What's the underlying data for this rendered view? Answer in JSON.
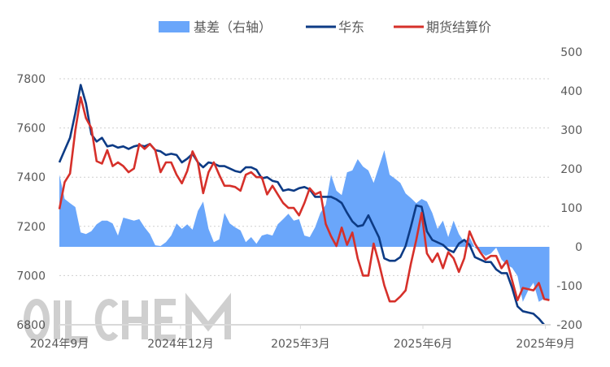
{
  "chart_data": {
    "type": "line",
    "title": "",
    "legend": {
      "placement": "top",
      "items": [
        {
          "label": "基差（右轴）",
          "type": "area",
          "color": "#6aa6fa"
        },
        {
          "label": "华东",
          "type": "line",
          "color": "#0d3b85"
        },
        {
          "label": "期货结算价",
          "type": "line",
          "color": "#d6302a"
        }
      ]
    },
    "grid": true,
    "watermark": "OILCHEM",
    "x_tick_labels": [
      "2024年9月",
      "2024年12月",
      "2025年3月",
      "2025年6月",
      "2025年9月"
    ],
    "x_tick_dates": [
      "2024-09-01",
      "2024-12-01",
      "2025-03-01",
      "2025-06-01",
      "2025-09-01"
    ],
    "y_left": {
      "range": [
        6800,
        7800
      ],
      "ticks": [
        "6800",
        "7000",
        "7200",
        "7400",
        "7600",
        "7800"
      ]
    },
    "y_right": {
      "range": [
        -200,
        500
      ],
      "ticks": [
        "-200",
        "-100",
        "0",
        "100",
        "200",
        "300",
        "400",
        "500"
      ]
    },
    "x": [
      "2024-09-01",
      "2024-09-05",
      "2024-09-09",
      "2024-09-13",
      "2024-09-17",
      "2024-09-21",
      "2024-09-25",
      "2024-09-29",
      "2024-10-03",
      "2024-10-07",
      "2024-10-11",
      "2024-10-15",
      "2024-10-19",
      "2024-10-23",
      "2024-10-27",
      "2024-10-31",
      "2024-11-04",
      "2024-11-08",
      "2024-11-12",
      "2024-11-16",
      "2024-11-20",
      "2024-11-24",
      "2024-11-28",
      "2024-12-02",
      "2024-12-06",
      "2024-12-10",
      "2024-12-14",
      "2024-12-18",
      "2024-12-22",
      "2024-12-26",
      "2024-12-30",
      "2025-01-03",
      "2025-01-07",
      "2025-01-11",
      "2025-01-15",
      "2025-01-19",
      "2025-01-23",
      "2025-01-27",
      "2025-01-31",
      "2025-02-04",
      "2025-02-08",
      "2025-02-12",
      "2025-02-16",
      "2025-02-20",
      "2025-02-24",
      "2025-02-28",
      "2025-03-04",
      "2025-03-08",
      "2025-03-12",
      "2025-03-16",
      "2025-03-20",
      "2025-03-24",
      "2025-03-28",
      "2025-04-01",
      "2025-04-05",
      "2025-04-09",
      "2025-04-13",
      "2025-04-17",
      "2025-04-21",
      "2025-04-25",
      "2025-04-29",
      "2025-05-03",
      "2025-05-07",
      "2025-05-11",
      "2025-05-15",
      "2025-05-19",
      "2025-05-23",
      "2025-05-27",
      "2025-05-31",
      "2025-06-04",
      "2025-06-08",
      "2025-06-12",
      "2025-06-16",
      "2025-06-20",
      "2025-06-24",
      "2025-06-28",
      "2025-07-02",
      "2025-07-06",
      "2025-07-10",
      "2025-07-14",
      "2025-07-18",
      "2025-07-22",
      "2025-07-26",
      "2025-07-30",
      "2025-08-03",
      "2025-08-07",
      "2025-08-11",
      "2025-08-15",
      "2025-08-19",
      "2025-08-23",
      "2025-08-27",
      "2025-08-31",
      "2025-09-04"
    ],
    "series": [
      {
        "name": "基差（右轴）",
        "axis": "right",
        "type": "area",
        "values": [
          185,
          123,
          112,
          102,
          37,
          33,
          40,
          58,
          67,
          67,
          60,
          29,
          75,
          71,
          67,
          71,
          50,
          33,
          4,
          2,
          12,
          29,
          60,
          46,
          58,
          44,
          92,
          116,
          46,
          12,
          19,
          87,
          60,
          50,
          42,
          12,
          25,
          8,
          29,
          33,
          29,
          58,
          71,
          85,
          67,
          71,
          29,
          25,
          50,
          87,
          108,
          185,
          144,
          133,
          191,
          196,
          225,
          206,
          196,
          164,
          206,
          248,
          185,
          175,
          164,
          137,
          125,
          112,
          123,
          116,
          87,
          46,
          67,
          25,
          67,
          33,
          12,
          25,
          -2,
          -12,
          -23,
          -17,
          -2,
          -33,
          -46,
          -54,
          -75,
          -141,
          -112,
          -92,
          -141,
          -133,
          -137
        ]
      },
      {
        "name": "华东",
        "axis": "left",
        "type": "line",
        "values": [
          7460,
          7510,
          7560,
          7660,
          7775,
          7700,
          7575,
          7545,
          7560,
          7525,
          7530,
          7520,
          7525,
          7515,
          7525,
          7530,
          7525,
          7535,
          7510,
          7505,
          7490,
          7495,
          7490,
          7460,
          7475,
          7495,
          7460,
          7440,
          7460,
          7455,
          7445,
          7445,
          7435,
          7425,
          7420,
          7440,
          7440,
          7430,
          7395,
          7400,
          7385,
          7380,
          7345,
          7350,
          7345,
          7355,
          7360,
          7350,
          7320,
          7320,
          7320,
          7320,
          7310,
          7295,
          7255,
          7220,
          7200,
          7205,
          7245,
          7200,
          7155,
          7070,
          7060,
          7060,
          7075,
          7120,
          7200,
          7285,
          7280,
          7180,
          7145,
          7135,
          7125,
          7105,
          7095,
          7130,
          7145,
          7125,
          7075,
          7065,
          7055,
          7055,
          7025,
          7010,
          7010,
          6950,
          6875,
          6855,
          6850,
          6845,
          6825,
          6800,
          null
        ]
      },
      {
        "name": "期货结算价",
        "axis": "left",
        "type": "line",
        "values": [
          7270,
          7380,
          7415,
          7590,
          7725,
          7640,
          7600,
          7465,
          7455,
          7510,
          7445,
          7460,
          7445,
          7420,
          7435,
          7535,
          7515,
          7535,
          7510,
          7420,
          7460,
          7460,
          7410,
          7375,
          7425,
          7505,
          7460,
          7335,
          7420,
          7460,
          7410,
          7365,
          7365,
          7360,
          7345,
          7410,
          7420,
          7400,
          7400,
          7330,
          7365,
          7330,
          7295,
          7275,
          7275,
          7245,
          7295,
          7355,
          7330,
          7340,
          7210,
          7160,
          7120,
          7195,
          7125,
          7175,
          7070,
          7000,
          7000,
          7130,
          7050,
          6960,
          6895,
          6895,
          6915,
          6940,
          7050,
          7145,
          7255,
          7090,
          7055,
          7090,
          7030,
          7095,
          7070,
          7015,
          7070,
          7180,
          7130,
          7095,
          7065,
          7080,
          7080,
          7030,
          7060,
          6980,
          6900,
          6950,
          6945,
          6940,
          6970,
          6905,
          6900
        ]
      }
    ]
  }
}
